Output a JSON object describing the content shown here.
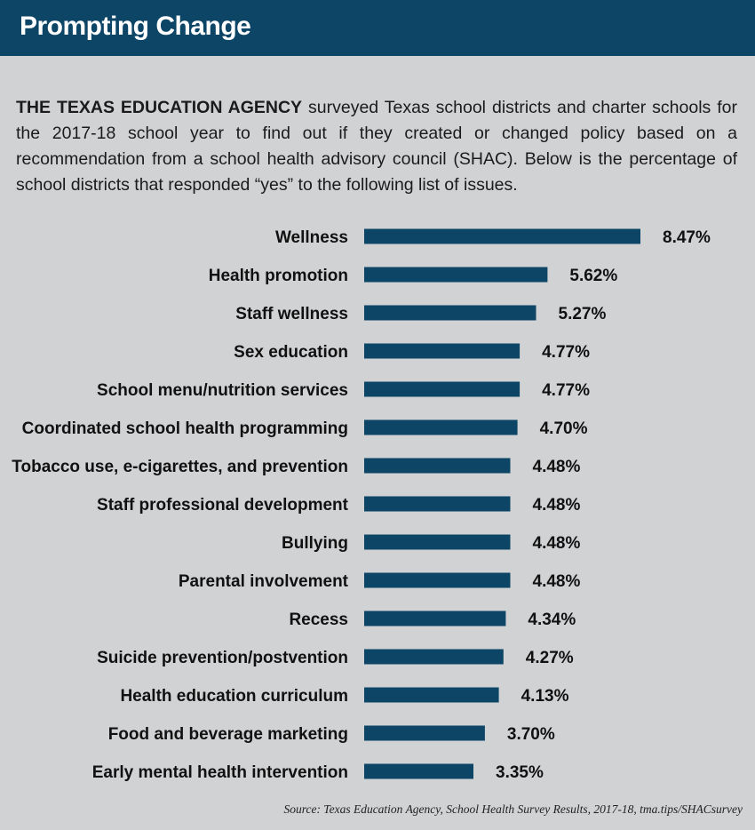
{
  "header": {
    "title": "Prompting Change"
  },
  "intro": {
    "lead": "THE TEXAS EDUCATION AGENCY",
    "body": " surveyed Texas school districts and charter schools for the 2017-18 school year to find out if they created or changed policy based on a recommendation from a school health advisory council (SHAC). Below is the percentage of school districts that responded “yes” to the following list of issues."
  },
  "chart_data": {
    "type": "bar",
    "orientation": "horizontal",
    "title": "",
    "xlabel": "",
    "ylabel": "",
    "xlim": [
      0,
      8.47
    ],
    "grid": false,
    "legend": "none",
    "bar_color": "#0d4567",
    "categories": [
      "Wellness",
      "Health promotion",
      "Staff wellness",
      "Sex education",
      "School menu/nutrition services",
      "Coordinated school health programming",
      "Tobacco use, e-cigarettes, and prevention",
      "Staff professional development",
      "Bullying",
      "Parental involvement",
      "Recess",
      "Suicide prevention/postvention",
      "Health education curriculum",
      "Food and beverage marketing",
      "Early mental health intervention"
    ],
    "values": [
      8.47,
      5.62,
      5.27,
      4.77,
      4.77,
      4.7,
      4.48,
      4.48,
      4.48,
      4.48,
      4.34,
      4.27,
      4.13,
      3.7,
      3.35
    ],
    "value_labels": [
      "8.47%",
      "5.62%",
      "5.27%",
      "4.77%",
      "4.77%",
      "4.70%",
      "4.48%",
      "4.48%",
      "4.48%",
      "4.48%",
      "4.34%",
      "4.27%",
      "4.13%",
      "3.70%",
      "3.35%"
    ]
  },
  "source": "Source: Texas Education Agency, School Health Survey Results, 2017-18, tma.tips/SHACsurvey"
}
